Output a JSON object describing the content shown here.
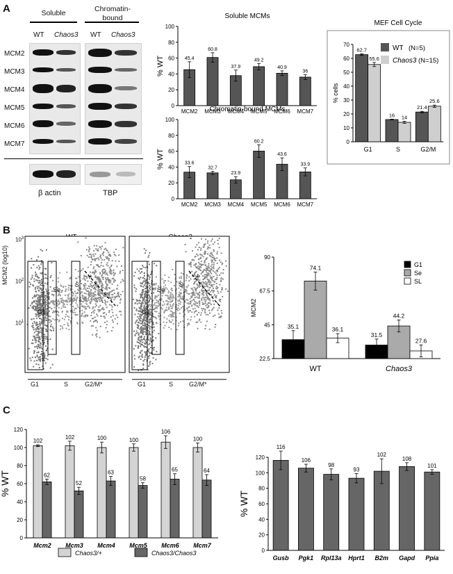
{
  "panels": {
    "a": "A",
    "b": "B",
    "c": "C"
  },
  "western": {
    "soluble_header": "Soluble",
    "chromatin_header": "Chromatin-\nbound",
    "col_wt": "WT",
    "col_chaos3": "Chaos3",
    "rows": [
      "MCM2",
      "MCM3",
      "MCM4",
      "MCM5",
      "MCM6",
      "MCM7"
    ],
    "loading_left": "β actin",
    "loading_right": "TBP"
  },
  "flow": {
    "title_wt": "WT",
    "title_chaos3": "Chaos3",
    "ylabel": "MCM2 (log10)",
    "ytick_top": "10",
    "ytick_top_exp": "3",
    "ytick_mid": "10",
    "ytick_mid_exp": "2",
    "ytick_low": "10",
    "ytick_low_exp": "1",
    "gate_g1": "G1",
    "gate_se": "Se",
    "gate_sl": "Sl",
    "star": "*",
    "x_g1": "G1",
    "x_s": "S",
    "x_g2m": "G2/M*"
  },
  "chart_data": [
    {
      "type": "bar",
      "title": "Soluble MCMs",
      "ylabel": "% WT",
      "categories": [
        "MCM2",
        "MCM3",
        "MCM4",
        "MCM5",
        "MCM6",
        "MCM7"
      ],
      "values": [
        45.4,
        60.8,
        37.9,
        49.2,
        40.9,
        36
      ],
      "value_labels": [
        "45.4",
        "60.8",
        "37.9",
        "49.2",
        "40.9",
        "36"
      ],
      "errors": [
        10,
        6,
        7,
        4,
        3,
        3
      ],
      "ylim": [
        0,
        100
      ],
      "yticks": [
        "0",
        "20",
        "40",
        "60",
        "80",
        "100"
      ],
      "color": "#555555"
    },
    {
      "type": "bar",
      "title": "Chromatin-bound MCMs",
      "ylabel": "% WT",
      "categories": [
        "MCM2",
        "MCM3",
        "MCM4",
        "MCM5",
        "MCM6",
        "MCM7"
      ],
      "values": [
        33.6,
        32.7,
        23.9,
        60.2,
        43.6,
        33.9
      ],
      "value_labels": [
        "33.6",
        "32.7",
        "23.9",
        "60.2",
        "43.6",
        "33.9"
      ],
      "errors": [
        7,
        2,
        4,
        8,
        8,
        5
      ],
      "ylim": [
        0,
        100
      ],
      "yticks": [
        "0",
        "20",
        "40",
        "60",
        "80",
        "100"
      ],
      "color": "#555555"
    },
    {
      "type": "bar",
      "title": "MEF Cell Cycle",
      "ylabel": "% cells",
      "categories": [
        "G1",
        "S",
        "G2/M"
      ],
      "series": [
        {
          "name": "WT",
          "legend_suffix": "(N=5)",
          "values": [
            62.7,
            16,
            21.4
          ],
          "value_labels": [
            "62.7",
            "16",
            "21.4"
          ],
          "errors": [
            0.6,
            0.3,
            0.5
          ],
          "color": "#555555"
        },
        {
          "name": "Chaos3",
          "legend_suffix": "(N=15)",
          "values": [
            55.6,
            14,
            25.6
          ],
          "value_labels": [
            "55.6",
            "14",
            "25.6"
          ],
          "errors": [
            1.5,
            0.7,
            0.8
          ],
          "color": "#cfcfcf"
        }
      ],
      "ylim": [
        0,
        70
      ],
      "yticks": [
        "0",
        "10",
        "20",
        "30",
        "40",
        "50",
        "60",
        "70"
      ],
      "legend": "top-right"
    },
    {
      "type": "bar",
      "title": "",
      "ylabel": "MCM2",
      "categories": [
        "WT",
        "Chaos3"
      ],
      "series": [
        {
          "name": "G1",
          "values": [
            35.1,
            31.5
          ],
          "value_labels": [
            "35.1",
            "31.5"
          ],
          "errors": [
            6,
            4
          ],
          "color": "#000000"
        },
        {
          "name": "Se",
          "values": [
            74.1,
            44.2
          ],
          "value_labels": [
            "74.1",
            "44.2"
          ],
          "errors": [
            6,
            4
          ],
          "color": "#aaaaaa"
        },
        {
          "name": "SL",
          "values": [
            36.1,
            27.6
          ],
          "value_labels": [
            "36.1",
            "27.6"
          ],
          "errors": [
            3,
            4
          ],
          "color": "#ffffff"
        }
      ],
      "ylim": [
        22.5,
        90
      ],
      "yticks": [
        "22.5",
        "45",
        "67.5",
        "90"
      ],
      "legend": "top-right"
    },
    {
      "type": "bar",
      "title": "",
      "ylabel": "% WT",
      "categories": [
        "Mcm2",
        "Mcm3",
        "Mcm4",
        "Mcm5",
        "Mcm6",
        "Mcm7"
      ],
      "series": [
        {
          "name": "Chaos3/+",
          "values": [
            102,
            102,
            100,
            100,
            106,
            100
          ],
          "value_labels": [
            "102",
            "102",
            "100",
            "100",
            "106",
            "100"
          ],
          "errors": [
            1,
            5,
            6,
            4,
            7,
            5
          ],
          "color": "#d4d4d4"
        },
        {
          "name": "Chaos3/Chaos3",
          "values": [
            62,
            52,
            63,
            58,
            65,
            64
          ],
          "value_labels": [
            "62",
            "52",
            "63",
            "58",
            "65",
            "64"
          ],
          "errors": [
            3,
            4,
            5,
            3,
            6,
            6
          ],
          "color": "#666666"
        }
      ],
      "ylim": [
        0,
        120
      ],
      "yticks": [
        "0",
        "20",
        "40",
        "60",
        "80",
        "100",
        "120"
      ],
      "legend": "bottom"
    },
    {
      "type": "bar",
      "title": "",
      "ylabel": "% WT",
      "categories": [
        "Gusb",
        "Pgk1",
        "Rpl13a",
        "Hprt1",
        "B2m",
        "Gapd",
        "Ppia"
      ],
      "values": [
        116,
        106,
        98,
        93,
        102,
        108,
        101
      ],
      "value_labels": [
        "116",
        "106",
        "98",
        "93",
        "102",
        "108",
        "101"
      ],
      "errors": [
        12,
        5,
        7,
        6,
        16,
        5,
        3
      ],
      "ylim": [
        0,
        120
      ],
      "yticks": [
        "0",
        "20",
        "40",
        "60",
        "80",
        "100",
        "120"
      ],
      "color": "#666666"
    }
  ]
}
